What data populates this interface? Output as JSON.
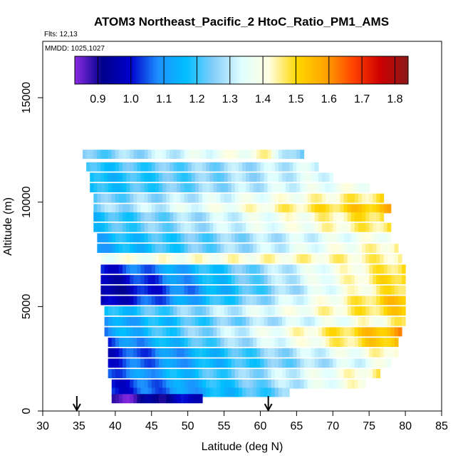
{
  "chart_data": {
    "type": "heatmap",
    "title": "ATOM3 Northeast_Pacific_2 HtoC_Ratio_PM1_AMS",
    "flights_label": "Flts: 12,13",
    "dates_label": "MMDD: 1025,1027",
    "xlabel": "Latitude (deg N)",
    "ylabel": "Altitude (m)",
    "xlim": [
      30,
      85
    ],
    "ylim": [
      0,
      17700
    ],
    "x_ticks": [
      "30",
      "35",
      "40",
      "45",
      "50",
      "55",
      "60",
      "65",
      "70",
      "75",
      "80",
      "85"
    ],
    "x_tick_values": [
      30,
      35,
      40,
      45,
      50,
      55,
      60,
      65,
      70,
      75,
      80,
      85
    ],
    "y_ticks": [
      "0",
      "5000",
      "10000",
      "15000"
    ],
    "y_tick_values": [
      0,
      5000,
      10000,
      15000
    ],
    "colorbar": {
      "range": [
        0.83,
        1.84
      ],
      "ticks": [
        "0.9",
        "1.0",
        "1.1",
        "1.2",
        "1.3",
        "1.4",
        "1.5",
        "1.6",
        "1.7",
        "1.8"
      ],
      "tick_values": [
        0.9,
        1.0,
        1.1,
        1.2,
        1.3,
        1.4,
        1.5,
        1.6,
        1.7,
        1.8
      ],
      "colors": [
        "#8a2be2",
        "#00008b",
        "#0000cd",
        "#1e90ff",
        "#00bfff",
        "#87cefa",
        "#e0ffff",
        "#ffffe0",
        "#ffd700",
        "#ffa500",
        "#ff4500",
        "#cc0000",
        "#8b1a1a"
      ]
    },
    "arrow_latitudes": [
      34.7,
      61.1
    ],
    "cell_width_deg": 0.5,
    "series": [
      {
        "alt": 12300,
        "h": 420,
        "x0": 35.5,
        "x1": 61.0,
        "v0": 1.22,
        "v1": 1.42
      },
      {
        "alt": 12300,
        "h": 420,
        "x0": 61.0,
        "x1": 66.0,
        "v0": 1.42,
        "v1": 1.2
      },
      {
        "alt": 11700,
        "h": 420,
        "x0": 36.0,
        "x1": 68.0,
        "v0": 1.18,
        "v1": 1.33
      },
      {
        "alt": 11200,
        "h": 420,
        "x0": 36.5,
        "x1": 70.0,
        "v0": 1.15,
        "v1": 1.35
      },
      {
        "alt": 10700,
        "h": 420,
        "x0": 36.5,
        "x1": 75.0,
        "v0": 1.16,
        "v1": 1.4
      },
      {
        "alt": 10200,
        "h": 420,
        "x0": 37.0,
        "x1": 77.0,
        "v0": 1.22,
        "v1": 1.48
      },
      {
        "alt": 9700,
        "h": 420,
        "x0": 37.0,
        "x1": 78.0,
        "v0": 1.25,
        "v1": 1.55
      },
      {
        "alt": 9300,
        "h": 420,
        "x0": 37.0,
        "x1": 77.0,
        "v0": 1.17,
        "v1": 1.5
      },
      {
        "alt": 8800,
        "h": 420,
        "x0": 37.0,
        "x1": 78.0,
        "v0": 1.18,
        "v1": 1.48
      },
      {
        "alt": 8300,
        "h": 420,
        "x0": 37.5,
        "x1": 78.0,
        "v0": 1.14,
        "v1": 1.4
      },
      {
        "alt": 7800,
        "h": 420,
        "x0": 37.5,
        "x1": 79.0,
        "v0": 1.12,
        "v1": 1.45
      },
      {
        "alt": 7300,
        "h": 420,
        "x0": 38.0,
        "x1": 79.5,
        "v0": 1.38,
        "v1": 1.45
      },
      {
        "alt": 6800,
        "h": 420,
        "x0": 38.0,
        "x1": 80.0,
        "v0": 1.0,
        "v1": 1.5
      },
      {
        "alt": 6300,
        "h": 420,
        "x0": 38.0,
        "x1": 80.0,
        "v0": 0.95,
        "v1": 1.52
      },
      {
        "alt": 5800,
        "h": 420,
        "x0": 38.0,
        "x1": 80.0,
        "v0": 0.92,
        "v1": 1.5
      },
      {
        "alt": 5300,
        "h": 420,
        "x0": 38.0,
        "x1": 80.0,
        "v0": 0.95,
        "v1": 1.55
      },
      {
        "alt": 4800,
        "h": 420,
        "x0": 38.5,
        "x1": 80.0,
        "v0": 1.15,
        "v1": 1.52
      },
      {
        "alt": 4300,
        "h": 420,
        "x0": 38.5,
        "x1": 80.0,
        "v0": 1.1,
        "v1": 1.45
      },
      {
        "alt": 3800,
        "h": 420,
        "x0": 38.5,
        "x1": 79.5,
        "v0": 1.1,
        "v1": 1.58
      },
      {
        "alt": 3300,
        "h": 420,
        "x0": 39.0,
        "x1": 79.0,
        "v0": 1.05,
        "v1": 1.55
      },
      {
        "alt": 2800,
        "h": 420,
        "x0": 39.0,
        "x1": 79.0,
        "v0": 1.0,
        "v1": 1.45
      },
      {
        "alt": 2300,
        "h": 420,
        "x0": 39.0,
        "x1": 78.0,
        "v0": 1.02,
        "v1": 1.38
      },
      {
        "alt": 1800,
        "h": 420,
        "x0": 39.0,
        "x1": 76.5,
        "v0": 1.05,
        "v1": 1.45
      },
      {
        "alt": 1300,
        "h": 420,
        "x0": 39.5,
        "x1": 74.5,
        "v0": 1.0,
        "v1": 1.42
      },
      {
        "alt": 900,
        "h": 420,
        "x0": 39.5,
        "x1": 64.0,
        "v0": 1.0,
        "v1": 1.25
      },
      {
        "alt": 600,
        "h": 420,
        "x0": 39.5,
        "x1": 52.0,
        "v0": 0.85,
        "v1": 1.0
      }
    ]
  }
}
